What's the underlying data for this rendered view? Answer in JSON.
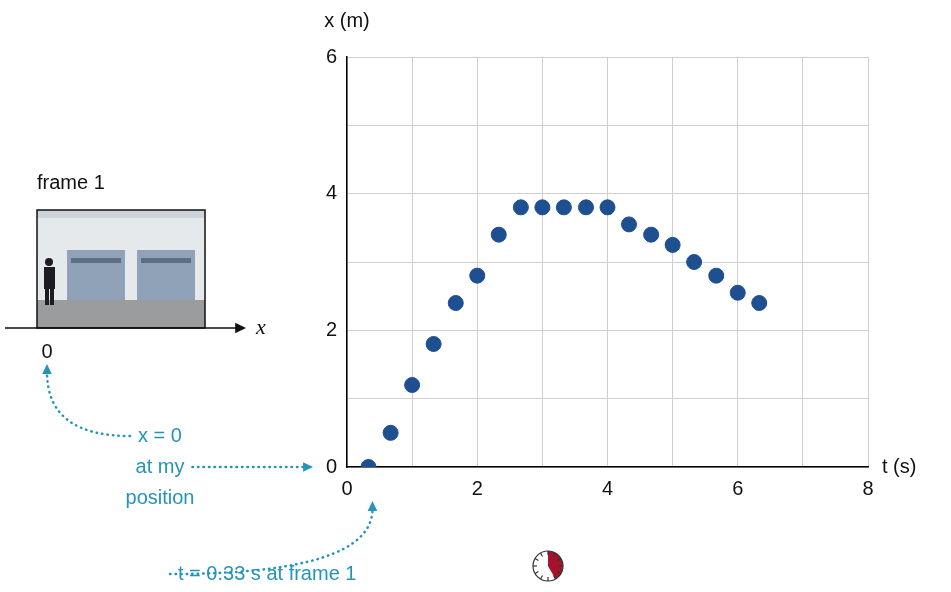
{
  "chart_data": {
    "type": "scatter",
    "xlabel": "t (s)",
    "ylabel": "x (m)",
    "x": [
      0.33,
      0.67,
      1.0,
      1.33,
      1.67,
      2.0,
      2.33,
      2.67,
      3.0,
      3.33,
      3.67,
      4.0,
      4.33,
      4.67,
      5.0,
      5.33,
      5.67,
      6.0,
      6.33
    ],
    "values": [
      0,
      0.5,
      1.2,
      1.8,
      2.4,
      2.8,
      3.4,
      3.8,
      3.8,
      3.8,
      3.8,
      3.8,
      3.55,
      3.4,
      3.25,
      3.0,
      2.8,
      2.55,
      2.4
    ],
    "color": "#1d4f91",
    "marker": "circle",
    "xlim": [
      0,
      8
    ],
    "xticks": [
      0,
      2,
      4,
      6,
      8
    ],
    "ylim": [
      0,
      6
    ],
    "yticks": [
      0,
      2,
      4,
      6
    ],
    "grid": true,
    "inset": {
      "title": "frame 1",
      "axis_label": "x",
      "origin_label": "0"
    },
    "annotations": [
      {
        "lines": [
          "x = 0",
          "at my",
          "position"
        ]
      },
      {
        "text": "t = 0.33 s at frame 1"
      }
    ]
  }
}
